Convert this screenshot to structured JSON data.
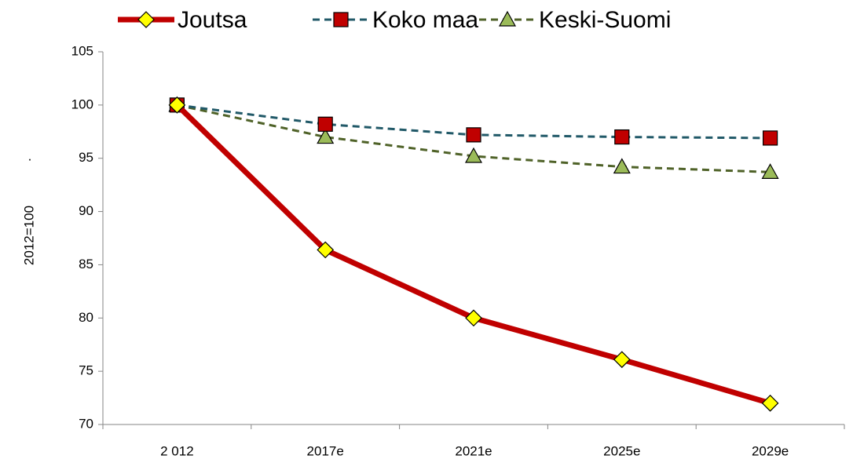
{
  "chart_data": {
    "type": "line",
    "y_axis_label": "2012=100",
    "annotation": ".",
    "categories": [
      "2 012",
      "2017e",
      "2021e",
      "2025e",
      "2029e"
    ],
    "series": [
      {
        "name": "Joutsa",
        "color": "#c00000",
        "marker": "diamond",
        "marker_color": "#ffff00",
        "dashed": false,
        "values": [
          100,
          86.4,
          80.0,
          76.1,
          72.0
        ]
      },
      {
        "name": "Koko maa",
        "color": "#215968",
        "marker": "square",
        "marker_color": "#c00000",
        "dashed": true,
        "values": [
          100,
          98.2,
          97.2,
          97.0,
          96.9
        ]
      },
      {
        "name": "Keski-Suomi",
        "color": "#4f6228",
        "marker": "triangle",
        "marker_color": "#9bbb59",
        "dashed": true,
        "values": [
          100,
          97.0,
          95.2,
          94.2,
          93.7
        ]
      }
    ],
    "ylim": [
      70,
      105
    ],
    "yticks": [
      70,
      75,
      80,
      85,
      90,
      95,
      100,
      105
    ],
    "grid": false,
    "legend": "top"
  }
}
